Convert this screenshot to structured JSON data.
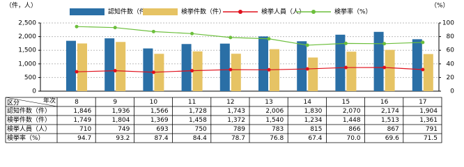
{
  "chart_data": {
    "type": "bar",
    "y_label": "（件，人）",
    "y2_label": "（%）",
    "row_header": "区分",
    "column_header": "年次",
    "categories": [
      "8",
      "9",
      "10",
      "11",
      "12",
      "13",
      "14",
      "15",
      "16",
      "17"
    ],
    "series": [
      {
        "name": "認知件数（件）",
        "type": "bar",
        "color": "#2a6fa6",
        "values": [
          1846,
          1936,
          1566,
          1728,
          1743,
          2006,
          1830,
          2070,
          2174,
          1904
        ],
        "value_labels": [
          "1,846",
          "1,936",
          "1,566",
          "1,728",
          "1,743",
          "2,006",
          "1,830",
          "2,070",
          "2,174",
          "1,904"
        ]
      },
      {
        "name": "検挙件数（件）",
        "type": "bar",
        "color": "#e6c364",
        "values": [
          1749,
          1804,
          1369,
          1458,
          1372,
          1540,
          1234,
          1448,
          1513,
          1361
        ],
        "value_labels": [
          "1,749",
          "1,804",
          "1,369",
          "1,458",
          "1,372",
          "1,540",
          "1,234",
          "1,448",
          "1,513",
          "1,361"
        ]
      },
      {
        "name": "検挙人員（人）",
        "type": "line",
        "color": "#e0101c",
        "values": [
          710,
          749,
          693,
          750,
          789,
          783,
          815,
          866,
          867,
          791
        ]
      },
      {
        "name": "検挙率（%）",
        "type": "line",
        "axis": "y2",
        "color": "#6cbf3c",
        "values": [
          94.7,
          93.2,
          87.4,
          84.4,
          78.7,
          76.8,
          67.4,
          70.0,
          69.6,
          71.5
        ],
        "value_labels": [
          "94.7",
          "93.2",
          "87.4",
          "84.4",
          "78.7",
          "76.8",
          "67.4",
          "70.0",
          "69.6",
          "71.5"
        ]
      }
    ],
    "ylim": [
      0,
      2500
    ],
    "yticks": [
      0,
      {
        "value": 500,
        "label": "500"
      },
      {
        "value": 1000,
        "label": "1,000"
      },
      {
        "value": 1500,
        "label": "1,500"
      },
      {
        "value": 2000,
        "label": "2,000"
      },
      {
        "value": 2500,
        "label": "2,500"
      }
    ],
    "y2lim": [
      0,
      100
    ],
    "y2ticks": [
      0,
      20,
      40,
      60,
      80,
      100
    ],
    "grid": true
  }
}
